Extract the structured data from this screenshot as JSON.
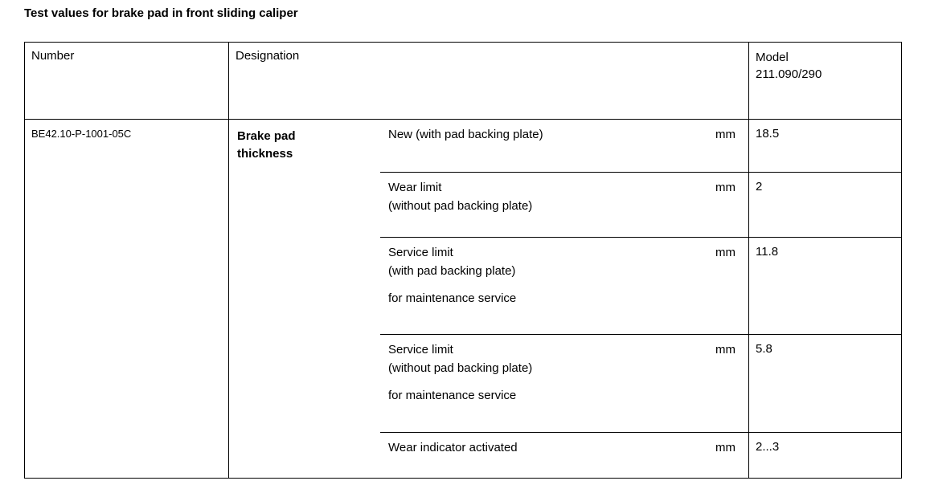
{
  "title": "Test values for brake pad in front sliding caliper",
  "table": {
    "headers": {
      "number": "Number",
      "designation": "Designation",
      "model": "Model",
      "model_code": "211.090/290"
    },
    "row": {
      "number": "BE42.10-P-1001-05C",
      "designation": "Brake pad\nthickness",
      "subrows": [
        {
          "line1": "New (with pad backing plate)",
          "unit": "mm",
          "value": "18.5"
        },
        {
          "line1": "Wear limit",
          "line2": "(without pad backing plate)",
          "unit": "mm",
          "value": "2"
        },
        {
          "line1": "Service limit",
          "line2": "(with pad backing plate)",
          "note": "for maintenance service",
          "unit": "mm",
          "value": "11.8"
        },
        {
          "line1": "Service limit",
          "line2": "(without pad backing plate)",
          "note": "for maintenance service",
          "unit": "mm",
          "value": "5.8"
        },
        {
          "line1": "Wear indicator activated",
          "unit": "mm",
          "value": "2...3"
        }
      ]
    }
  }
}
